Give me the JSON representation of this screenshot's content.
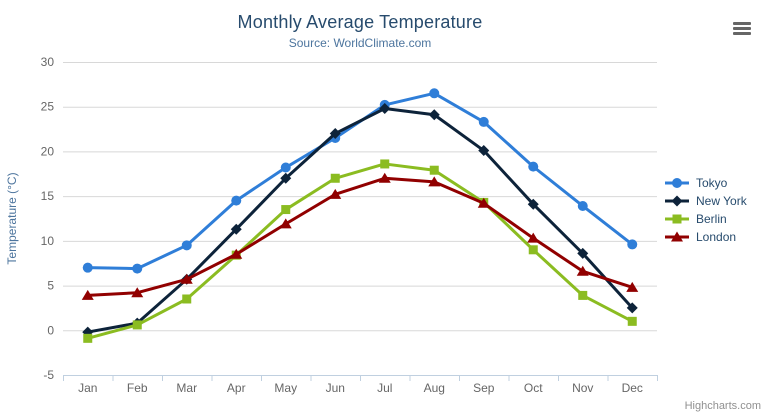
{
  "header": {
    "title": "Monthly Average Temperature",
    "subtitle": "Source: WorldClimate.com",
    "menu_icon": "hamburger-icon"
  },
  "credits": "Highcharts.com",
  "colors": {
    "title": "#274b6d",
    "subtitle": "#4d759e",
    "axis_label": "#666666",
    "axis_title": "#4d759e",
    "grid": "#d8d8d8",
    "axis_line": "#c0d0e0",
    "legend_text": "#274b6d",
    "credits": "#909090",
    "background": "#ffffff"
  },
  "chart_data": {
    "type": "line",
    "title": "Monthly Average Temperature",
    "subtitle": "Source: WorldClimate.com",
    "categories": [
      "Jan",
      "Feb",
      "Mar",
      "Apr",
      "May",
      "Jun",
      "Jul",
      "Aug",
      "Sep",
      "Oct",
      "Nov",
      "Dec"
    ],
    "series": [
      {
        "name": "Tokyo",
        "color": "#2f7ed8",
        "marker": "circle",
        "values": [
          7.0,
          6.9,
          9.5,
          14.5,
          18.2,
          21.5,
          25.2,
          26.5,
          23.3,
          18.3,
          13.9,
          9.6
        ]
      },
      {
        "name": "New York",
        "color": "#0d233a",
        "marker": "diamond",
        "values": [
          -0.2,
          0.8,
          5.7,
          11.3,
          17.0,
          22.0,
          24.8,
          24.1,
          20.1,
          14.1,
          8.6,
          2.5
        ]
      },
      {
        "name": "Berlin",
        "color": "#8bbc21",
        "marker": "square",
        "values": [
          -0.9,
          0.6,
          3.5,
          8.4,
          13.5,
          17.0,
          18.6,
          17.9,
          14.3,
          9.0,
          3.9,
          1.0
        ]
      },
      {
        "name": "London",
        "color": "#910000",
        "marker": "triangle",
        "values": [
          3.9,
          4.2,
          5.7,
          8.5,
          11.9,
          15.2,
          17.0,
          16.6,
          14.2,
          10.3,
          6.6,
          4.8
        ]
      }
    ],
    "xlabel": "",
    "ylabel": "Temperature (°C)",
    "ylim": [
      -5,
      30
    ],
    "ytick_step": 5,
    "grid": true,
    "legend_position": "right"
  }
}
